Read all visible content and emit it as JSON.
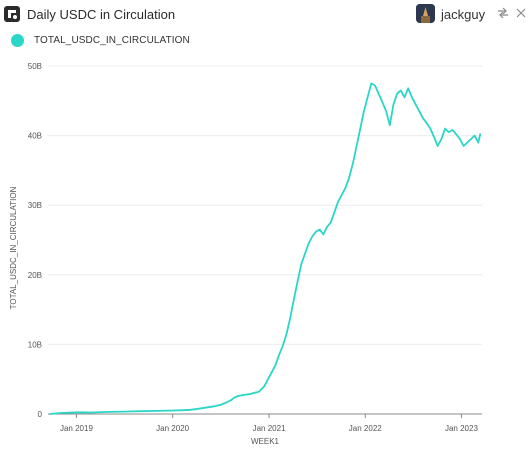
{
  "header": {
    "title": "Daily USDC in Circulation",
    "username": "jackguy"
  },
  "icons": {
    "logo": "app-logo-icon",
    "share": "share-icon",
    "close": "close-icon"
  },
  "colors": {
    "series": "#2ad6c6",
    "grid": "#ececec",
    "axis": "#888888"
  },
  "chart_data": {
    "type": "line",
    "title": "Daily USDC in Circulation",
    "xlabel": "WEEK1",
    "ylabel": "TOTAL_USDC_IN_CIRCULATION",
    "legend_position": "top-left",
    "grid": true,
    "ylim": [
      0,
      50000000000
    ],
    "xlim": [
      "2018-09-15",
      "2023-03-20"
    ],
    "y_ticks": [
      {
        "value": 0,
        "label": "0"
      },
      {
        "value": 10000000000,
        "label": "10B"
      },
      {
        "value": 20000000000,
        "label": "20B"
      },
      {
        "value": 30000000000,
        "label": "30B"
      },
      {
        "value": 40000000000,
        "label": "40B"
      },
      {
        "value": 50000000000,
        "label": "50B"
      }
    ],
    "x_ticks": [
      {
        "date": "2019-01-01",
        "label": "Jan 2019"
      },
      {
        "date": "2020-01-01",
        "label": "Jan 2020"
      },
      {
        "date": "2021-01-01",
        "label": "Jan 2021"
      },
      {
        "date": "2022-01-01",
        "label": "Jan 2022"
      },
      {
        "date": "2023-01-01",
        "label": "Jan 2023"
      }
    ],
    "series": [
      {
        "name": "TOTAL_USDC_IN_CIRCULATION",
        "color": "#2ad6c6",
        "points": [
          [
            "2018-09-24",
            0.0
          ],
          [
            "2018-11-01",
            0.15
          ],
          [
            "2019-01-07",
            0.25
          ],
          [
            "2019-03-01",
            0.22
          ],
          [
            "2019-05-01",
            0.3
          ],
          [
            "2019-07-01",
            0.35
          ],
          [
            "2019-09-01",
            0.4
          ],
          [
            "2019-11-01",
            0.45
          ],
          [
            "2020-01-06",
            0.5
          ],
          [
            "2020-02-10",
            0.55
          ],
          [
            "2020-03-09",
            0.6
          ],
          [
            "2020-04-06",
            0.75
          ],
          [
            "2020-05-04",
            0.9
          ],
          [
            "2020-06-08",
            1.1
          ],
          [
            "2020-06-29",
            1.3
          ],
          [
            "2020-07-20",
            1.6
          ],
          [
            "2020-08-10",
            2.0
          ],
          [
            "2020-08-24",
            2.4
          ],
          [
            "2020-09-07",
            2.6
          ],
          [
            "2020-09-28",
            2.75
          ],
          [
            "2020-10-19",
            2.85
          ],
          [
            "2020-11-02",
            3.0
          ],
          [
            "2020-11-23",
            3.2
          ],
          [
            "2020-12-14",
            4.0
          ],
          [
            "2021-01-04",
            5.5
          ],
          [
            "2021-01-25",
            7.0
          ],
          [
            "2021-02-08",
            8.5
          ],
          [
            "2021-02-22",
            9.8
          ],
          [
            "2021-03-08",
            11.5
          ],
          [
            "2021-03-22",
            13.8
          ],
          [
            "2021-04-05",
            16.5
          ],
          [
            "2021-04-19",
            19.0
          ],
          [
            "2021-05-03",
            21.5
          ],
          [
            "2021-05-17",
            23.0
          ],
          [
            "2021-05-31",
            24.5
          ],
          [
            "2021-06-14",
            25.5
          ],
          [
            "2021-06-28",
            26.2
          ],
          [
            "2021-07-12",
            26.5
          ],
          [
            "2021-07-26",
            25.8
          ],
          [
            "2021-08-09",
            26.9
          ],
          [
            "2021-08-23",
            27.5
          ],
          [
            "2021-09-06",
            29.0
          ],
          [
            "2021-09-20",
            30.5
          ],
          [
            "2021-10-04",
            31.5
          ],
          [
            "2021-10-18",
            32.5
          ],
          [
            "2021-11-01",
            34.0
          ],
          [
            "2021-11-15",
            36.0
          ],
          [
            "2021-11-29",
            38.5
          ],
          [
            "2021-12-13",
            41.0
          ],
          [
            "2021-12-27",
            43.5
          ],
          [
            "2022-01-10",
            45.5
          ],
          [
            "2022-01-24",
            47.5
          ],
          [
            "2022-02-07",
            47.2
          ],
          [
            "2022-02-21",
            46.0
          ],
          [
            "2022-03-07",
            44.8
          ],
          [
            "2022-03-21",
            43.5
          ],
          [
            "2022-04-04",
            41.5
          ],
          [
            "2022-04-18",
            44.5
          ],
          [
            "2022-05-02",
            46.0
          ],
          [
            "2022-05-16",
            46.5
          ],
          [
            "2022-05-30",
            45.5
          ],
          [
            "2022-06-13",
            46.8
          ],
          [
            "2022-06-27",
            45.5
          ],
          [
            "2022-07-11",
            44.5
          ],
          [
            "2022-07-25",
            43.5
          ],
          [
            "2022-08-08",
            42.5
          ],
          [
            "2022-08-22",
            41.8
          ],
          [
            "2022-09-05",
            41.0
          ],
          [
            "2022-09-19",
            39.8
          ],
          [
            "2022-10-03",
            38.5
          ],
          [
            "2022-10-17",
            39.5
          ],
          [
            "2022-10-31",
            41.0
          ],
          [
            "2022-11-14",
            40.5
          ],
          [
            "2022-11-28",
            40.8
          ],
          [
            "2022-12-12",
            40.2
          ],
          [
            "2022-12-26",
            39.5
          ],
          [
            "2023-01-09",
            38.5
          ],
          [
            "2023-01-23",
            39.0
          ],
          [
            "2023-02-06",
            39.5
          ],
          [
            "2023-02-20",
            40.0
          ],
          [
            "2023-03-06",
            39.0
          ],
          [
            "2023-03-13",
            40.2
          ]
        ],
        "unit_scale": 1000000000
      }
    ]
  }
}
